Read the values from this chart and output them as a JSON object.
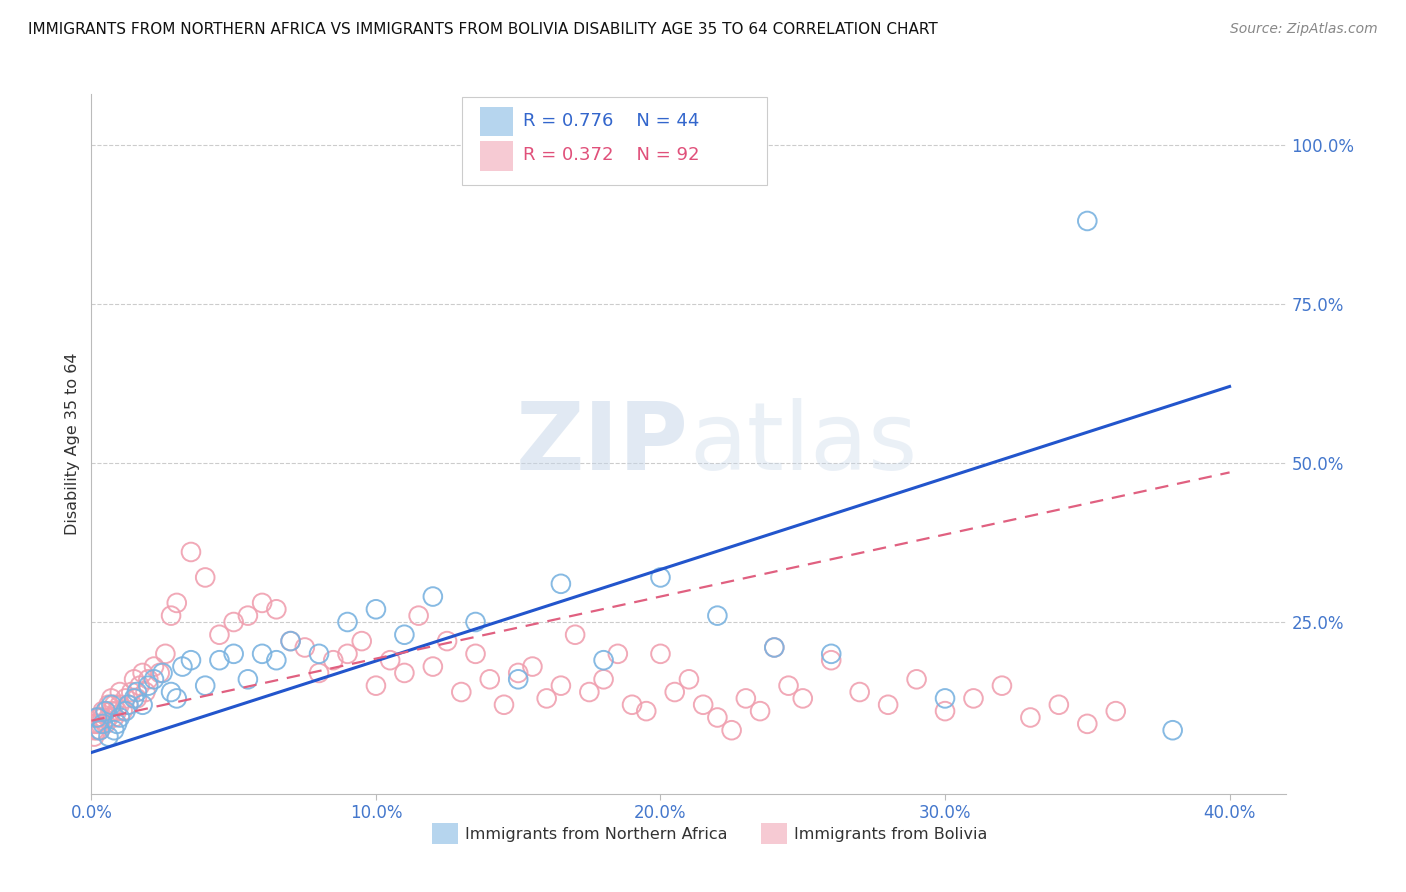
{
  "title": "IMMIGRANTS FROM NORTHERN AFRICA VS IMMIGRANTS FROM BOLIVIA DISABILITY AGE 35 TO 64 CORRELATION CHART",
  "source": "Source: ZipAtlas.com",
  "xlabel_ticks": [
    "0.0%",
    "10.0%",
    "20.0%",
    "30.0%",
    "40.0%"
  ],
  "xlabel_tick_vals": [
    0.0,
    0.1,
    0.2,
    0.3,
    0.4
  ],
  "ylabel": "Disability Age 35 to 64",
  "right_ytick_labels": [
    "100.0%",
    "75.0%",
    "50.0%",
    "25.0%"
  ],
  "right_ytick_vals": [
    1.0,
    0.75,
    0.5,
    0.25
  ],
  "xlim": [
    0.0,
    0.42
  ],
  "ylim": [
    -0.02,
    1.08
  ],
  "legend_r1": "R = 0.776",
  "legend_n1": "N = 44",
  "legend_r2": "R = 0.372",
  "legend_n2": "N = 92",
  "color_blue": "#7ab3e0",
  "color_pink": "#f0a0b0",
  "color_blue_line": "#2255cc",
  "color_pink_line": "#e06080",
  "watermark_zip": "ZIP",
  "watermark_atlas": "atlas",
  "blue_line_x": [
    0.0,
    0.4
  ],
  "blue_line_y": [
    0.045,
    0.62
  ],
  "pink_line_x": [
    0.0,
    0.4
  ],
  "pink_line_y": [
    0.095,
    0.485
  ],
  "blue_scatter_x": [
    0.002,
    0.003,
    0.004,
    0.005,
    0.006,
    0.007,
    0.008,
    0.009,
    0.01,
    0.012,
    0.013,
    0.015,
    0.016,
    0.018,
    0.02,
    0.022,
    0.025,
    0.028,
    0.03,
    0.032,
    0.035,
    0.04,
    0.045,
    0.05,
    0.055,
    0.06,
    0.065,
    0.07,
    0.08,
    0.09,
    0.1,
    0.11,
    0.12,
    0.135,
    0.15,
    0.165,
    0.18,
    0.2,
    0.22,
    0.24,
    0.26,
    0.3,
    0.35,
    0.38
  ],
  "blue_scatter_y": [
    0.1,
    0.08,
    0.09,
    0.11,
    0.07,
    0.12,
    0.08,
    0.09,
    0.1,
    0.11,
    0.12,
    0.13,
    0.14,
    0.12,
    0.15,
    0.16,
    0.17,
    0.14,
    0.13,
    0.18,
    0.19,
    0.15,
    0.19,
    0.2,
    0.16,
    0.2,
    0.19,
    0.22,
    0.2,
    0.25,
    0.27,
    0.23,
    0.29,
    0.25,
    0.16,
    0.31,
    0.19,
    0.32,
    0.26,
    0.21,
    0.2,
    0.13,
    0.88,
    0.08
  ],
  "pink_scatter_x": [
    0.001,
    0.001,
    0.001,
    0.002,
    0.002,
    0.002,
    0.003,
    0.003,
    0.003,
    0.004,
    0.004,
    0.005,
    0.005,
    0.006,
    0.006,
    0.007,
    0.007,
    0.008,
    0.008,
    0.009,
    0.01,
    0.01,
    0.011,
    0.012,
    0.013,
    0.014,
    0.015,
    0.016,
    0.017,
    0.018,
    0.019,
    0.02,
    0.022,
    0.024,
    0.026,
    0.028,
    0.03,
    0.035,
    0.04,
    0.045,
    0.05,
    0.055,
    0.06,
    0.065,
    0.07,
    0.075,
    0.08,
    0.085,
    0.09,
    0.095,
    0.1,
    0.105,
    0.11,
    0.115,
    0.12,
    0.125,
    0.13,
    0.135,
    0.14,
    0.145,
    0.15,
    0.155,
    0.16,
    0.165,
    0.17,
    0.175,
    0.18,
    0.185,
    0.19,
    0.195,
    0.2,
    0.205,
    0.21,
    0.215,
    0.22,
    0.225,
    0.23,
    0.235,
    0.24,
    0.245,
    0.25,
    0.26,
    0.27,
    0.28,
    0.29,
    0.3,
    0.31,
    0.32,
    0.33,
    0.34,
    0.35,
    0.36
  ],
  "pink_scatter_y": [
    0.08,
    0.09,
    0.07,
    0.1,
    0.08,
    0.09,
    0.08,
    0.1,
    0.09,
    0.11,
    0.1,
    0.09,
    0.11,
    0.12,
    0.1,
    0.11,
    0.13,
    0.1,
    0.12,
    0.11,
    0.12,
    0.14,
    0.11,
    0.13,
    0.12,
    0.14,
    0.16,
    0.13,
    0.15,
    0.17,
    0.14,
    0.16,
    0.18,
    0.17,
    0.2,
    0.26,
    0.28,
    0.36,
    0.32,
    0.23,
    0.25,
    0.26,
    0.28,
    0.27,
    0.22,
    0.21,
    0.17,
    0.19,
    0.2,
    0.22,
    0.15,
    0.19,
    0.17,
    0.26,
    0.18,
    0.22,
    0.14,
    0.2,
    0.16,
    0.12,
    0.17,
    0.18,
    0.13,
    0.15,
    0.23,
    0.14,
    0.16,
    0.2,
    0.12,
    0.11,
    0.2,
    0.14,
    0.16,
    0.12,
    0.1,
    0.08,
    0.13,
    0.11,
    0.21,
    0.15,
    0.13,
    0.19,
    0.14,
    0.12,
    0.16,
    0.11,
    0.13,
    0.15,
    0.1,
    0.12,
    0.09,
    0.11
  ]
}
